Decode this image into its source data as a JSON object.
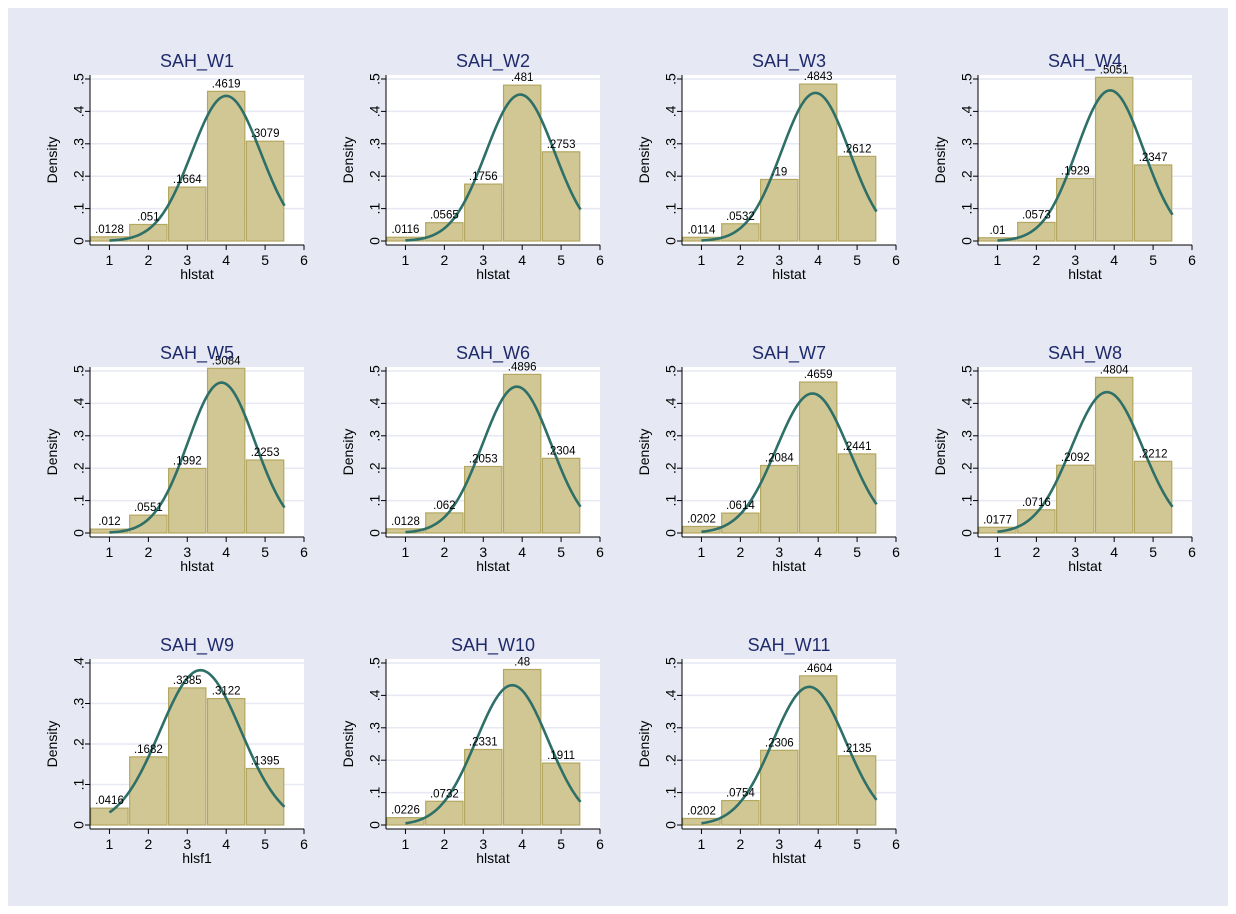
{
  "colors": {
    "background": "#e6e9f3",
    "plot_area": "#ffffff",
    "grid": "#e6e9f3",
    "bar_fill": "#d1c794",
    "bar_edge": "#b3a761",
    "curve": "#2e6f68",
    "title": "#1f2a6b"
  },
  "chart_data": [
    {
      "type": "bar",
      "title": "SAH_W1",
      "xlabel": "hlstat",
      "ylabel": "Density",
      "x": [
        1,
        2,
        3,
        4,
        5
      ],
      "values": [
        0.0128,
        0.051,
        0.1664,
        0.4619,
        0.3079
      ],
      "labels": [
        ".0128",
        ".051",
        ".1664",
        ".4619",
        ".3079"
      ],
      "xlim": [
        0.5,
        6
      ],
      "xticks": [
        "1",
        "2",
        "3",
        "4",
        "5",
        "6"
      ],
      "ylim": [
        0,
        0.5
      ],
      "yticks": [
        "0",
        ".1",
        ".2",
        ".3",
        ".4",
        ".5"
      ],
      "normal_curve": true
    },
    {
      "type": "bar",
      "title": "SAH_W2",
      "xlabel": "hlstat",
      "ylabel": "Density",
      "x": [
        1,
        2,
        3,
        4,
        5
      ],
      "values": [
        0.0116,
        0.0565,
        0.1756,
        0.481,
        0.2753
      ],
      "labels": [
        ".0116",
        ".0565",
        ".1756",
        ".481",
        ".2753"
      ],
      "xlim": [
        0.5,
        6
      ],
      "xticks": [
        "1",
        "2",
        "3",
        "4",
        "5",
        "6"
      ],
      "ylim": [
        0,
        0.5
      ],
      "yticks": [
        "0",
        ".1",
        ".2",
        ".3",
        ".4",
        ".5"
      ],
      "normal_curve": true
    },
    {
      "type": "bar",
      "title": "SAH_W3",
      "xlabel": "hlstat",
      "ylabel": "Density",
      "x": [
        1,
        2,
        3,
        4,
        5
      ],
      "values": [
        0.0114,
        0.0532,
        0.19,
        0.4843,
        0.2612
      ],
      "labels": [
        ".0114",
        ".0532",
        ".19",
        ".4843",
        ".2612"
      ],
      "xlim": [
        0.5,
        6
      ],
      "xticks": [
        "1",
        "2",
        "3",
        "4",
        "5",
        "6"
      ],
      "ylim": [
        0,
        0.5
      ],
      "yticks": [
        "0",
        ".1",
        ".2",
        ".3",
        ".4",
        ".5"
      ],
      "normal_curve": true
    },
    {
      "type": "bar",
      "title": "SAH_W4",
      "xlabel": "hlstat",
      "ylabel": "Density",
      "x": [
        1,
        2,
        3,
        4,
        5
      ],
      "values": [
        0.01,
        0.0573,
        0.1929,
        0.5051,
        0.2347
      ],
      "labels": [
        ".01",
        ".0573",
        ".1929",
        ".5051",
        ".2347"
      ],
      "xlim": [
        0.5,
        6
      ],
      "xticks": [
        "1",
        "2",
        "3",
        "4",
        "5",
        "6"
      ],
      "ylim": [
        0,
        0.5
      ],
      "yticks": [
        "0",
        ".1",
        ".2",
        ".3",
        ".4",
        ".5"
      ],
      "normal_curve": true
    },
    {
      "type": "bar",
      "title": "SAH_W5",
      "xlabel": "hlstat",
      "ylabel": "Density",
      "x": [
        1,
        2,
        3,
        4,
        5
      ],
      "values": [
        0.012,
        0.0551,
        0.1992,
        0.5084,
        0.2253
      ],
      "labels": [
        ".012",
        ".0551",
        ".1992",
        ".5084",
        ".2253"
      ],
      "xlim": [
        0.5,
        6
      ],
      "xticks": [
        "1",
        "2",
        "3",
        "4",
        "5",
        "6"
      ],
      "ylim": [
        0,
        0.5
      ],
      "yticks": [
        "0",
        ".1",
        ".2",
        ".3",
        ".4",
        ".5"
      ],
      "normal_curve": true
    },
    {
      "type": "bar",
      "title": "SAH_W6",
      "xlabel": "hlstat",
      "ylabel": "Density",
      "x": [
        1,
        2,
        3,
        4,
        5
      ],
      "values": [
        0.0128,
        0.062,
        0.2053,
        0.4896,
        0.2304
      ],
      "labels": [
        ".0128",
        ".062",
        ".2053",
        ".4896",
        ".2304"
      ],
      "xlim": [
        0.5,
        6
      ],
      "xticks": [
        "1",
        "2",
        "3",
        "4",
        "5",
        "6"
      ],
      "ylim": [
        0,
        0.5
      ],
      "yticks": [
        "0",
        ".1",
        ".2",
        ".3",
        ".4",
        ".5"
      ],
      "normal_curve": true
    },
    {
      "type": "bar",
      "title": "SAH_W7",
      "xlabel": "hlstat",
      "ylabel": "Density",
      "x": [
        1,
        2,
        3,
        4,
        5
      ],
      "values": [
        0.0202,
        0.0614,
        0.2084,
        0.4659,
        0.2441
      ],
      "labels": [
        ".0202",
        ".0614",
        ".2084",
        ".4659",
        ".2441"
      ],
      "xlim": [
        0.5,
        6
      ],
      "xticks": [
        "1",
        "2",
        "3",
        "4",
        "5",
        "6"
      ],
      "ylim": [
        0,
        0.5
      ],
      "yticks": [
        "0",
        ".1",
        ".2",
        ".3",
        ".4",
        ".5"
      ],
      "normal_curve": true
    },
    {
      "type": "bar",
      "title": "SAH_W8",
      "xlabel": "hlstat",
      "ylabel": "Density",
      "x": [
        1,
        2,
        3,
        4,
        5
      ],
      "values": [
        0.0177,
        0.0716,
        0.2092,
        0.4804,
        0.2212
      ],
      "labels": [
        ".0177",
        ".0716",
        ".2092",
        ".4804",
        ".2212"
      ],
      "xlim": [
        0.5,
        6
      ],
      "xticks": [
        "1",
        "2",
        "3",
        "4",
        "5",
        "6"
      ],
      "ylim": [
        0,
        0.5
      ],
      "yticks": [
        "0",
        ".1",
        ".2",
        ".3",
        ".4",
        ".5"
      ],
      "normal_curve": true
    },
    {
      "type": "bar",
      "title": "SAH_W9",
      "xlabel": "hlsf1",
      "ylabel": "Density",
      "x": [
        1,
        2,
        3,
        4,
        5
      ],
      "values": [
        0.0416,
        0.1682,
        0.3385,
        0.3122,
        0.1395
      ],
      "labels": [
        ".0416",
        ".1682",
        ".3385",
        ".3122",
        ".1395"
      ],
      "xlim": [
        0.5,
        6
      ],
      "xticks": [
        "1",
        "2",
        "3",
        "4",
        "5",
        "6"
      ],
      "ylim": [
        0,
        0.4
      ],
      "yticks": [
        "0",
        ".1",
        ".2",
        ".3",
        ".4"
      ],
      "normal_curve": true
    },
    {
      "type": "bar",
      "title": "SAH_W10",
      "xlabel": "hlstat",
      "ylabel": "Density",
      "x": [
        1,
        2,
        3,
        4,
        5
      ],
      "values": [
        0.0226,
        0.0732,
        0.2331,
        0.48,
        0.1911
      ],
      "labels": [
        ".0226",
        ".0732",
        ".2331",
        ".48",
        ".1911"
      ],
      "xlim": [
        0.5,
        6
      ],
      "xticks": [
        "1",
        "2",
        "3",
        "4",
        "5",
        "6"
      ],
      "ylim": [
        0,
        0.5
      ],
      "yticks": [
        "0",
        ".1",
        ".2",
        ".3",
        ".4",
        ".5"
      ],
      "normal_curve": true
    },
    {
      "type": "bar",
      "title": "SAH_W11",
      "xlabel": "hlstat",
      "ylabel": "Density",
      "x": [
        1,
        2,
        3,
        4,
        5
      ],
      "values": [
        0.0202,
        0.0754,
        0.2306,
        0.4604,
        0.2135
      ],
      "labels": [
        ".0202",
        ".0754",
        ".2306",
        ".4604",
        ".2135"
      ],
      "xlim": [
        0.5,
        6
      ],
      "xticks": [
        "1",
        "2",
        "3",
        "4",
        "5",
        "6"
      ],
      "ylim": [
        0,
        0.5
      ],
      "yticks": [
        "0",
        ".1",
        ".2",
        ".3",
        ".4",
        ".5"
      ],
      "normal_curve": true
    }
  ]
}
